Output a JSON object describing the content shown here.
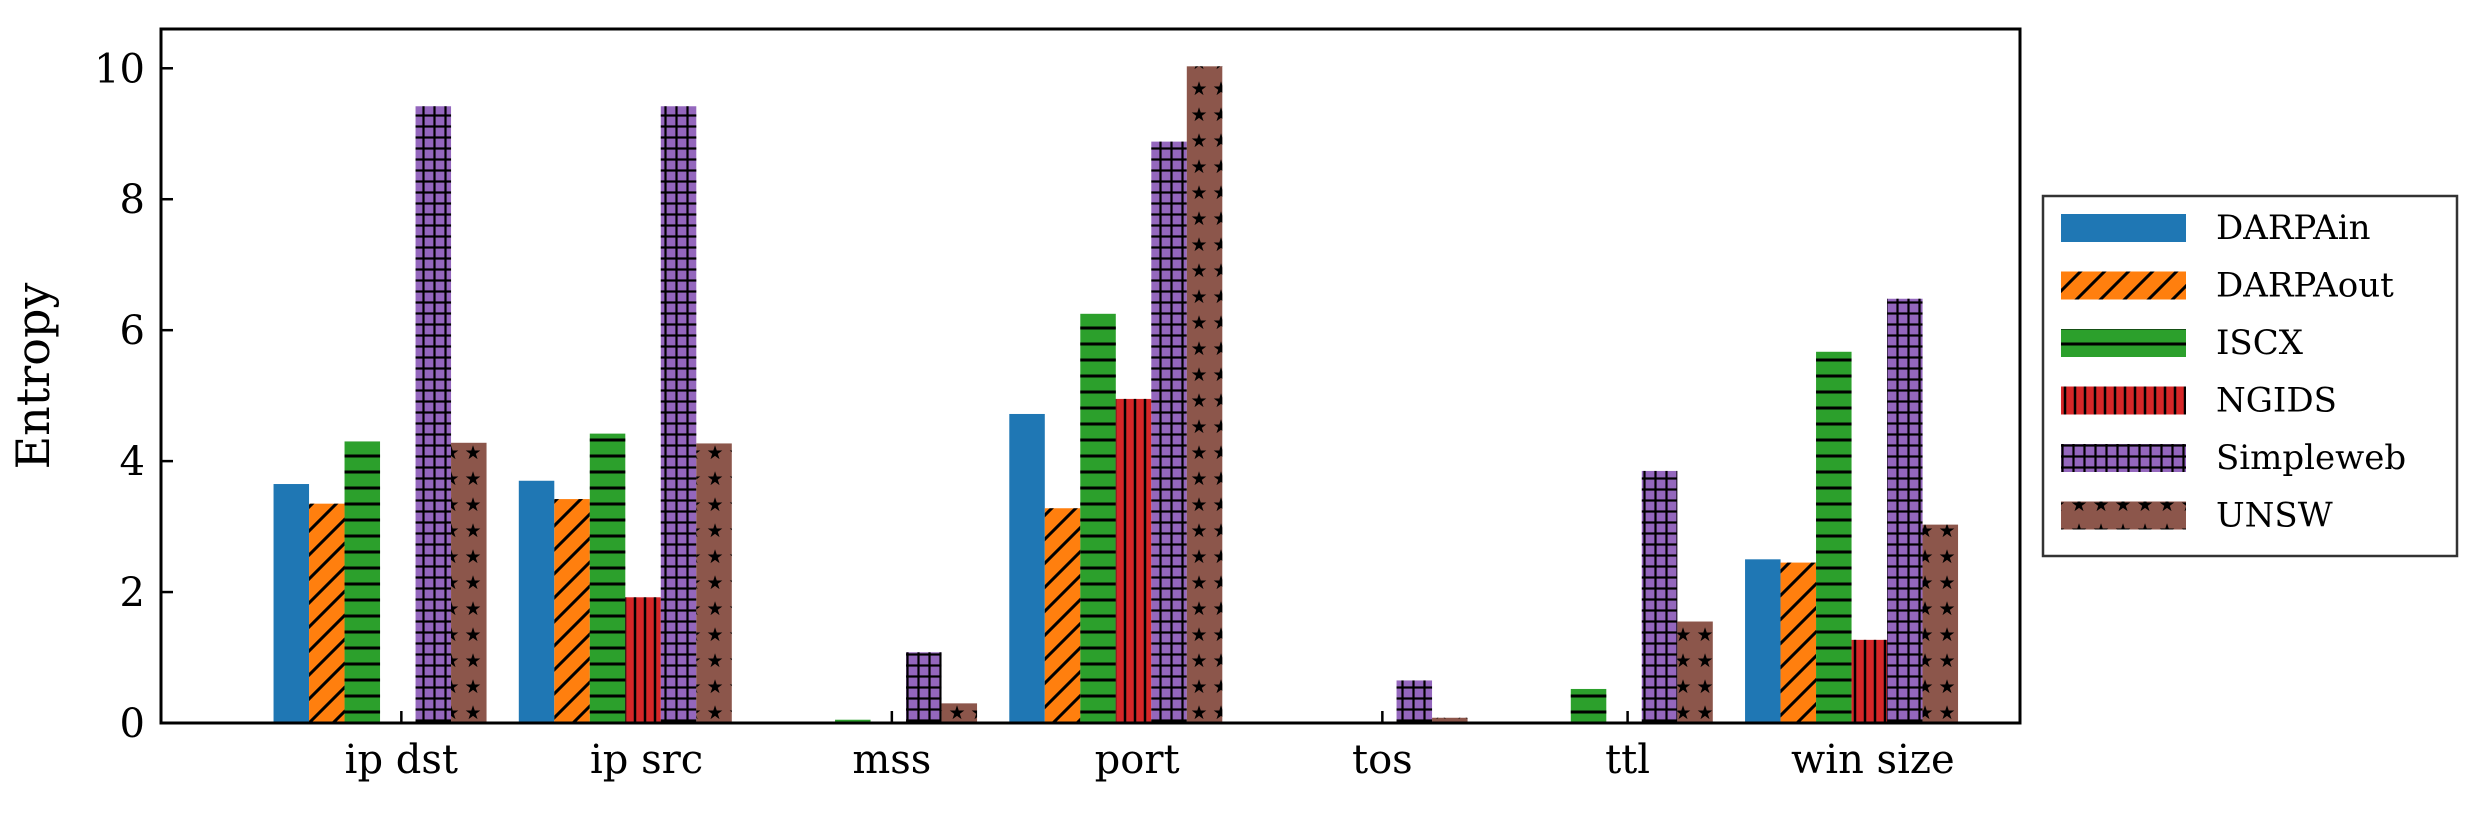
{
  "chart_data": {
    "type": "bar",
    "title": "",
    "xlabel": "",
    "ylabel": "Entropy",
    "ylim": [
      0,
      10.6
    ],
    "yticks": [
      0,
      2,
      4,
      6,
      8,
      10
    ],
    "grid": false,
    "legend_position": "right-outside",
    "categories": [
      "ip dst",
      "ip src",
      "mss",
      "port",
      "tos",
      "ttl",
      "win size"
    ],
    "series": [
      {
        "name": "DARPAin",
        "color": "#1f77b4",
        "pattern": "solid",
        "values": [
          3.65,
          3.7,
          0,
          4.72,
          0,
          0,
          2.5
        ]
      },
      {
        "name": "DARPAout",
        "color": "#ff7f0e",
        "pattern": "diagonal-hatch",
        "values": [
          3.35,
          3.42,
          0,
          3.28,
          0,
          0,
          2.45
        ]
      },
      {
        "name": "ISCX",
        "color": "#2ca02c",
        "pattern": "horizontal-lines",
        "values": [
          4.3,
          4.42,
          0.05,
          6.25,
          0,
          0.52,
          5.67
        ]
      },
      {
        "name": "NGIDS",
        "color": "#d62728",
        "pattern": "vertical-lines",
        "values": [
          0,
          1.92,
          0,
          4.95,
          0,
          0,
          1.27
        ]
      },
      {
        "name": "Simpleweb",
        "color": "#9467bd",
        "pattern": "grid",
        "values": [
          9.42,
          9.42,
          1.08,
          8.88,
          0.65,
          3.85,
          6.48
        ]
      },
      {
        "name": "UNSW",
        "color": "#8c564b",
        "pattern": "stars",
        "values": [
          4.28,
          4.27,
          0.3,
          10.03,
          0.08,
          1.55,
          3.03
        ]
      }
    ]
  }
}
